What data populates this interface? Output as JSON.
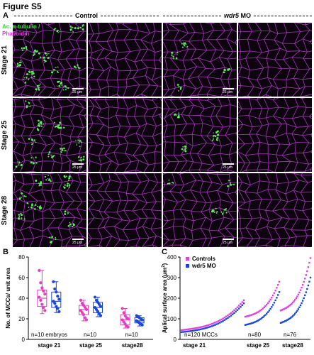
{
  "figure": {
    "title": "Figure S5"
  },
  "panelA": {
    "letter": "A",
    "groups": [
      {
        "label": "Control",
        "italic": false
      },
      {
        "gene": "wdr5",
        "suffix": " MO",
        "italic": true
      }
    ],
    "rows": [
      "Stage 21",
      "Stage 25",
      "Stage 28"
    ],
    "legend": [
      {
        "text": "Ac. α-tubulin /",
        "color": "#2ee62e"
      },
      {
        "text": "Phalloidin",
        "color": "#e040e0"
      }
    ],
    "scale_label": "25 μm",
    "colors": {
      "cilia": "#5df05d",
      "membrane": "#b83ccd"
    }
  },
  "panelB": {
    "letter": "B",
    "chart_data": {
      "type": "box",
      "ylabel": "No. of MCCs/ unit area",
      "ylim": [
        0,
        80
      ],
      "yticks": [
        0,
        20,
        40,
        60,
        80
      ],
      "categories": [
        "stage 21",
        "stage 25",
        "stage28"
      ],
      "series": [
        {
          "color": "#e040c0"
        },
        {
          "color": "#1a46d8"
        }
      ],
      "boxes": [
        {
          "group": 0,
          "series": 0,
          "min": 25,
          "q1": 32,
          "median": 40,
          "q3": 48,
          "max": 67,
          "points": [
            67,
            55,
            50,
            47,
            44,
            41,
            38,
            34,
            31,
            28
          ]
        },
        {
          "group": 0,
          "series": 1,
          "min": 26,
          "q1": 31,
          "median": 37,
          "q3": 46,
          "max": 56,
          "points": [
            56,
            49,
            46,
            42,
            39,
            37,
            35,
            32,
            30,
            27
          ]
        },
        {
          "group": 1,
          "series": 0,
          "min": 18,
          "q1": 24,
          "median": 29,
          "q3": 33,
          "max": 38,
          "points": [
            38,
            35,
            33,
            31,
            29,
            28,
            26,
            24,
            21,
            19
          ]
        },
        {
          "group": 1,
          "series": 1,
          "min": 22,
          "q1": 26,
          "median": 31,
          "q3": 36,
          "max": 41,
          "points": [
            41,
            38,
            36,
            34,
            32,
            31,
            29,
            27,
            25,
            23
          ]
        },
        {
          "group": 2,
          "series": 0,
          "min": 11,
          "q1": 14,
          "median": 19,
          "q3": 24,
          "max": 30,
          "points": [
            30,
            26,
            23,
            21,
            20,
            19,
            17,
            15,
            13,
            12
          ]
        },
        {
          "group": 2,
          "series": 1,
          "min": 13,
          "q1": 16,
          "median": 18,
          "q3": 21,
          "max": 23,
          "points": [
            23,
            22,
            21,
            20,
            19,
            18,
            17,
            16,
            15,
            14
          ]
        }
      ],
      "annotations": [
        "n=10 embryos",
        "n=10",
        "n=10"
      ]
    }
  },
  "panelC": {
    "letter": "C",
    "chart_data": {
      "type": "scatter",
      "ylabel_main": "Aplical surface area (μm",
      "ylabel_sup": "2",
      "ylabel_close": ")",
      "ylim": [
        0,
        400
      ],
      "yticks": [
        0,
        100,
        200,
        300,
        400
      ],
      "categories": [
        "stage 21",
        "stage 25",
        "stage28"
      ],
      "legend": [
        {
          "name": "Controls",
          "color": "#e040e0"
        },
        {
          "name": "wdr5 MO",
          "color": "#1a46d8"
        }
      ],
      "segments": [
        {
          "control": {
            "start": 45,
            "end": 190
          },
          "mo": {
            "start": 35,
            "end": 175
          }
        },
        {
          "control": {
            "start": 110,
            "end": 280
          },
          "mo": {
            "start": 70,
            "end": 230
          }
        },
        {
          "control": {
            "start": 140,
            "end": 395
          },
          "mo": {
            "start": 80,
            "end": 300
          }
        }
      ],
      "annotations": [
        "n=120 MCCs",
        "n=80",
        "n=76"
      ]
    }
  }
}
